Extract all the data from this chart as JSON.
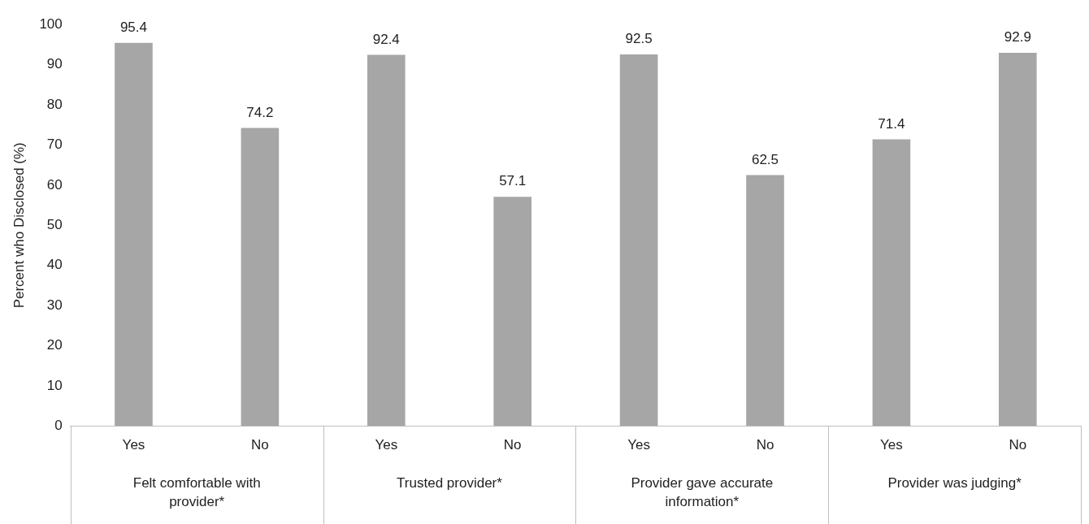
{
  "chart_data": {
    "type": "bar",
    "ylabel": "Percent who Disclosed (%)",
    "categories": [
      "Yes",
      "No",
      "Yes",
      "No",
      "Yes",
      "No",
      "Yes",
      "No"
    ],
    "values": [
      95.4,
      74.2,
      92.4,
      57.1,
      92.5,
      62.5,
      71.4,
      92.9
    ],
    "color": "#a6a6a6",
    "ylim": [
      0,
      100
    ],
    "yticks": [
      0,
      10,
      20,
      30,
      40,
      50,
      60,
      70,
      80,
      90,
      100
    ],
    "grid": false,
    "data_labels": true,
    "annotations": [
      "Felt comfortable with provider*",
      "Trusted provider*",
      "Provider gave accurate information*",
      "Provider was judging*"
    ]
  }
}
